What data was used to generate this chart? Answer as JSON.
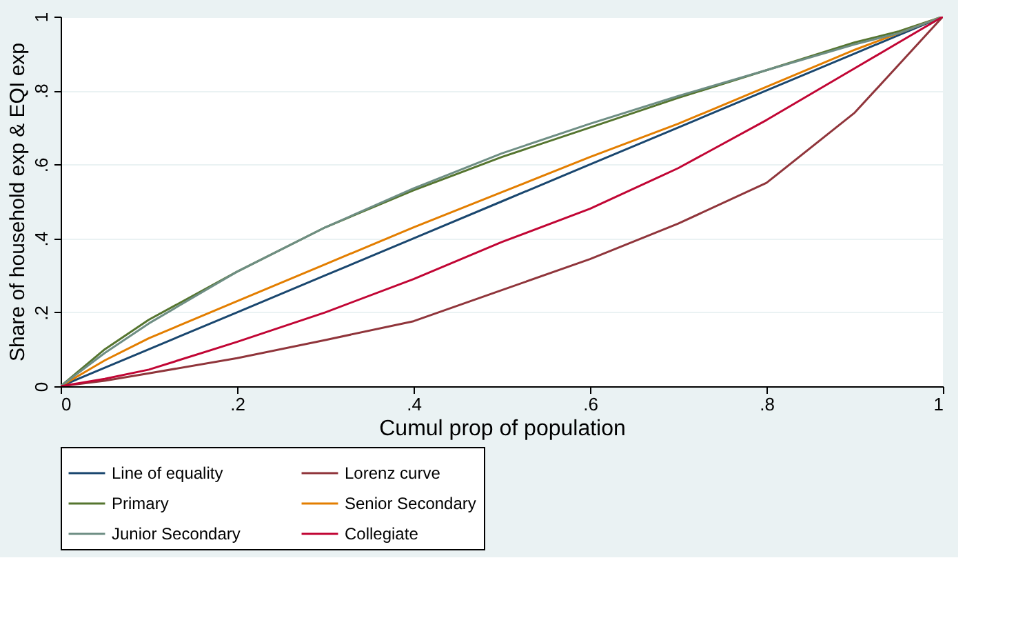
{
  "chart_data": {
    "type": "line",
    "xlabel": "Cumul prop of population",
    "ylabel": "Share of household exp & EQI exp",
    "xlim": [
      0,
      1
    ],
    "ylim": [
      0,
      1
    ],
    "xticks": [
      0,
      {
        "value": 0.2,
        "label": ".2"
      },
      {
        "value": 0.4,
        "label": ".4"
      },
      {
        "value": 0.6,
        "label": ".6"
      },
      {
        "value": 0.8,
        "label": ".8"
      },
      1
    ],
    "yticks": [
      0,
      {
        "value": 0.2,
        "label": ".2"
      },
      {
        "value": 0.4,
        "label": ".4"
      },
      {
        "value": 0.6,
        "label": ".6"
      },
      {
        "value": 0.8,
        "label": ".8"
      },
      1
    ],
    "x": [
      0,
      0.05,
      0.1,
      0.2,
      0.3,
      0.4,
      0.5,
      0.6,
      0.7,
      0.8,
      0.9,
      0.95,
      1
    ],
    "series": [
      {
        "name": "Line of equality",
        "color": "#1a476f",
        "values": [
          0,
          0.05,
          0.1,
          0.2,
          0.3,
          0.4,
          0.5,
          0.6,
          0.7,
          0.8,
          0.9,
          0.95,
          1
        ]
      },
      {
        "name": "Lorenz curve",
        "color": "#90353b",
        "values": [
          0,
          0.015,
          0.035,
          0.076,
          0.125,
          0.176,
          0.26,
          0.344,
          0.44,
          0.55,
          0.74,
          0.87,
          1
        ]
      },
      {
        "name": "Primary",
        "color": "#55752f",
        "values": [
          0,
          0.1,
          0.18,
          0.31,
          0.43,
          0.53,
          0.62,
          0.7,
          0.78,
          0.855,
          0.93,
          0.96,
          1
        ]
      },
      {
        "name": "Senior Secondary",
        "color": "#e37e00",
        "values": [
          0,
          0.07,
          0.13,
          0.23,
          0.33,
          0.43,
          0.525,
          0.62,
          0.71,
          0.81,
          0.91,
          0.955,
          1
        ]
      },
      {
        "name": "Junior Secondary",
        "color": "#6e8e84",
        "values": [
          0,
          0.09,
          0.17,
          0.31,
          0.43,
          0.535,
          0.63,
          0.71,
          0.785,
          0.855,
          0.925,
          0.955,
          1
        ]
      },
      {
        "name": "Collegiate",
        "color": "#c10534",
        "values": [
          0,
          0.02,
          0.045,
          0.12,
          0.2,
          0.29,
          0.39,
          0.48,
          0.59,
          0.72,
          0.86,
          0.93,
          1
        ]
      }
    ],
    "grid": "y",
    "legend": "bottom",
    "marker": "none",
    "line_style": "solid"
  }
}
